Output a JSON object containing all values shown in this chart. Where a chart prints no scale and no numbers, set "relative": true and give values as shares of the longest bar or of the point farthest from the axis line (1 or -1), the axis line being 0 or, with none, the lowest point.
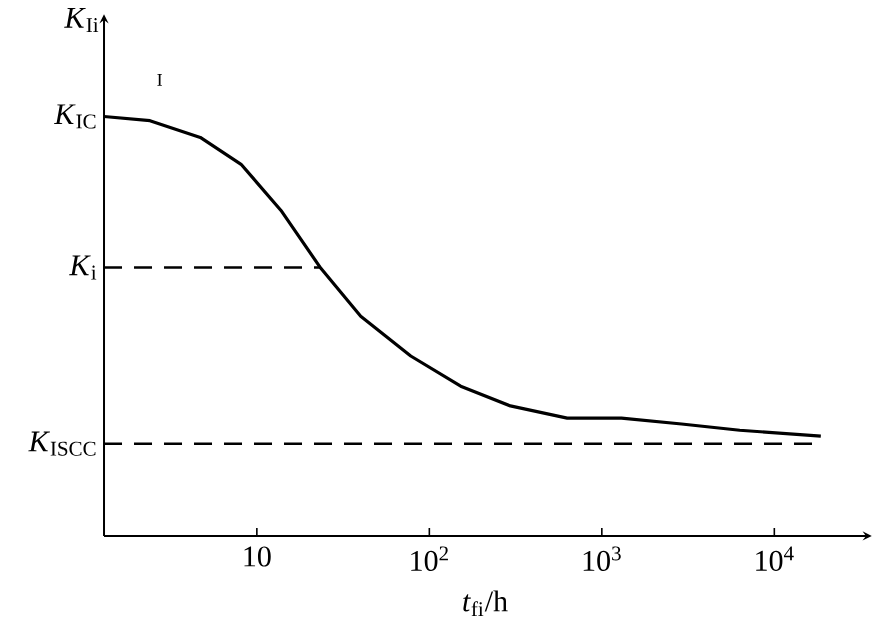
{
  "chart_data": {
    "type": "line",
    "xlabel": "*t*$_{fi}$/h",
    "ylabel": "*K*$_{Ii}$",
    "annotations": [
      "I",
      {
        "text": "*K*$_{IC}$",
        "x": 1.3,
        "y": 1
      }
    ],
    "log": "x",
    "relative": true,
    "xlim": [
      1.3,
      34000
    ],
    "xticks": [
      10,
      {
        "value": 100,
        "label": "10$^{2}$"
      },
      {
        "value": 1000,
        "label": "10$^{3}$"
      },
      {
        "value": 10000,
        "label": "10$^{4}$"
      }
    ],
    "series": [
      {
        "color": "#000000",
        "x": [
          1.3,
          2.4,
          4.7,
          8.1,
          13.8,
          23.5,
          40,
          78,
          152,
          295,
          630,
          1300,
          2900,
          6300,
          18600
        ],
        "values": [
          1,
          0.99,
          0.95,
          0.886,
          0.776,
          0.638,
          0.524,
          0.429,
          0.357,
          0.31,
          0.281,
          0.281,
          0.267,
          0.252,
          0.238
        ]
      }
    ],
    "ref_lines": [
      {
        "axis": "y",
        "value": 0.64,
        "label": "*K*$_{i}$",
        "line_style": "dashed"
      },
      {
        "axis": "y",
        "value": 0.22,
        "label": "*K*$_{ISCC}$",
        "line_style": "dashed"
      }
    ]
  }
}
